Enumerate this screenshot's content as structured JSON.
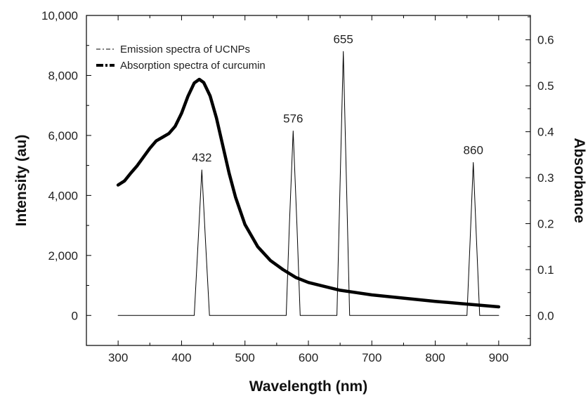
{
  "chart_data": {
    "type": "line",
    "xlabel": "Wavelength (nm)",
    "ylabel": "Intensity (au)",
    "y2label": "Absorbance",
    "xlim": [
      250,
      950
    ],
    "ylim": [
      -1000,
      10000
    ],
    "y2lim": [
      -0.065,
      0.653
    ],
    "xticks": [
      300,
      400,
      500,
      600,
      700,
      800,
      900
    ],
    "yticks": [
      0,
      2000,
      4000,
      6000,
      8000,
      10000
    ],
    "ytick_labels": [
      "0",
      "2,000",
      "4,000",
      "6,000",
      "8,000",
      "10,000"
    ],
    "y2ticks": [
      0.0,
      0.1,
      0.2,
      0.3,
      0.4,
      0.5,
      0.6
    ],
    "y2tick_labels": [
      "0.0",
      "0.1",
      "0.2",
      "0.3",
      "0.4",
      "0.5",
      "0.6"
    ],
    "legend_position": "top-left",
    "series": [
      {
        "name": "Emission spectra of UCNPs",
        "axis": "left",
        "style": "thin",
        "x": [
          300,
          420,
          426,
          432,
          438,
          444,
          565,
          570,
          576,
          582,
          587,
          645,
          650,
          655,
          660,
          665,
          850,
          855,
          860,
          865,
          870,
          900
        ],
        "y": [
          0,
          0,
          2400,
          4850,
          2400,
          0,
          0,
          3000,
          6150,
          3000,
          0,
          0,
          4400,
          8800,
          4400,
          0,
          0,
          2500,
          5100,
          2500,
          0,
          0
        ]
      },
      {
        "name": "Absorption spectra of curcumin",
        "axis": "right",
        "style": "thick",
        "x": [
          300,
          310,
          320,
          330,
          340,
          350,
          360,
          370,
          380,
          390,
          400,
          410,
          420,
          428,
          435,
          445,
          455,
          465,
          475,
          485,
          500,
          520,
          540,
          560,
          580,
          600,
          650,
          700,
          750,
          800,
          850,
          900
        ],
        "y": [
          0.284,
          0.293,
          0.31,
          0.326,
          0.345,
          0.364,
          0.38,
          0.388,
          0.396,
          0.412,
          0.44,
          0.477,
          0.506,
          0.514,
          0.507,
          0.478,
          0.43,
          0.37,
          0.31,
          0.258,
          0.198,
          0.15,
          0.12,
          0.1,
          0.083,
          0.072,
          0.055,
          0.045,
          0.038,
          0.031,
          0.025,
          0.019
        ]
      }
    ],
    "annotations": [
      {
        "text": "432",
        "x": 432,
        "y": 4850
      },
      {
        "text": "576",
        "x": 576,
        "y": 6150
      },
      {
        "text": "655",
        "x": 655,
        "y": 8800
      },
      {
        "text": "860",
        "x": 860,
        "y": 5100
      }
    ]
  }
}
